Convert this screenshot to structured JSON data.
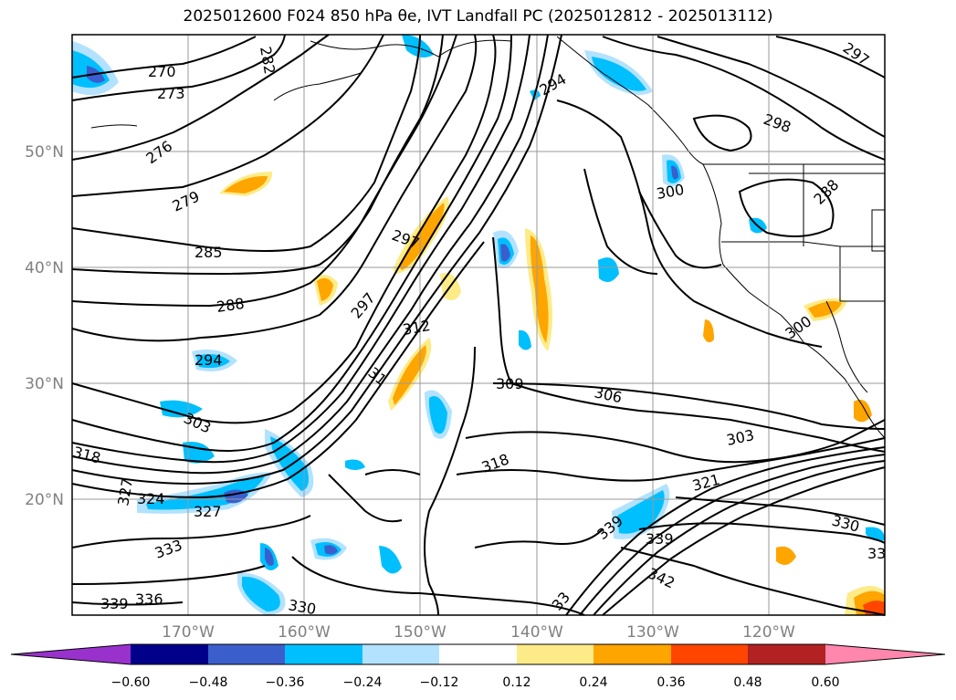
{
  "map": {
    "title": "2025012600 F024 850 hPa θe, IVT Landfall PC (2025012812 - 2025013112)",
    "lon_labels": [
      "170°W",
      "160°W",
      "150°W",
      "140°W",
      "130°W",
      "120°W"
    ],
    "lat_labels": [
      "50°N",
      "40°N",
      "30°N",
      "20°N"
    ],
    "contour_labels": [
      "270",
      "273",
      "276",
      "279",
      "285",
      "288",
      "294",
      "303",
      "318",
      "327",
      "324",
      "327",
      "333",
      "336",
      "339",
      "330",
      "297",
      "297",
      "312",
      "31",
      "309",
      "306",
      "303",
      "318",
      "321",
      "339",
      "342",
      "330",
      "33",
      "339",
      "300",
      "300",
      "294",
      "298",
      "288",
      "297",
      "33",
      "282"
    ],
    "colorbar": {
      "ticks": [
        "−0.60",
        "−0.48",
        "−0.36",
        "−0.24",
        "−0.12",
        "0.12",
        "0.24",
        "0.36",
        "0.48",
        "0.60"
      ],
      "colors": [
        "#9932cc",
        "#00008b",
        "#3a5fcd",
        "#00bfff",
        "#b2e2ff",
        "#ffffff",
        "#fdeb87",
        "#ffa500",
        "#ff4500",
        "#b22222",
        "#ff86ad"
      ]
    }
  }
}
